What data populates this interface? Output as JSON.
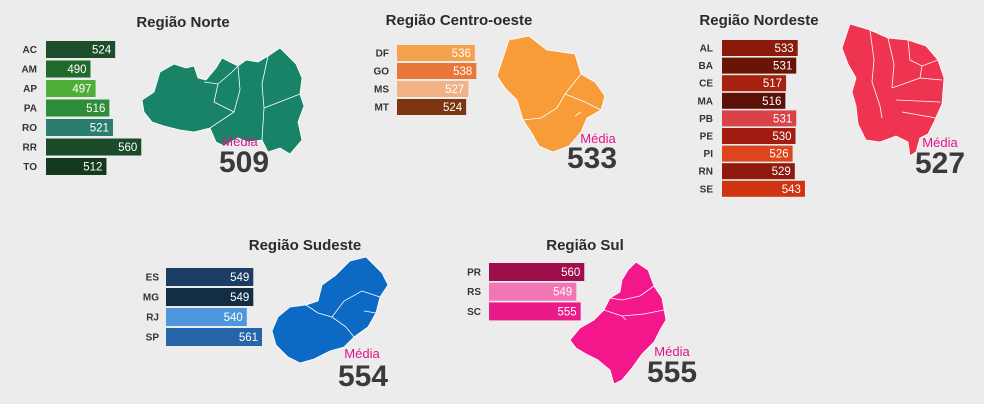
{
  "chart_data": [
    {
      "type": "bar",
      "title": "Região Norte",
      "categories": [
        "AC",
        "AM",
        "AP",
        "PA",
        "RO",
        "RR",
        "TO"
      ],
      "values": [
        524,
        490,
        497,
        516,
        521,
        560,
        512
      ],
      "colors": [
        "#1d4d2a",
        "#1f6b2d",
        "#4fae37",
        "#2e8d3b",
        "#2a7d6c",
        "#1a4a27",
        "#133a1f"
      ],
      "media_label": "Média",
      "media_value": "509",
      "map_color": "#188366"
    },
    {
      "type": "bar",
      "title": "Região Centro-oeste",
      "categories": [
        "DF",
        "GO",
        "MS",
        "MT"
      ],
      "values": [
        536,
        538,
        527,
        524
      ],
      "colors": [
        "#f6a14d",
        "#e9773a",
        "#f1b286",
        "#7c3411"
      ],
      "media_label": "Média",
      "media_value": "533",
      "map_color": "#f89c39"
    },
    {
      "type": "bar",
      "title": "Região Nordeste",
      "categories": [
        "AL",
        "BA",
        "CE",
        "MA",
        "PB",
        "PE",
        "PI",
        "RN",
        "SE"
      ],
      "values": [
        533,
        531,
        517,
        516,
        531,
        530,
        526,
        529,
        543
      ],
      "colors": [
        "#8c1a0b",
        "#6a1408",
        "#a8200f",
        "#5c1006",
        "#d94348",
        "#a31c12",
        "#e0441c",
        "#8f1a0d",
        "#cf3412"
      ],
      "media_label": "Média",
      "media_value": "527",
      "map_color": "#ef3452"
    },
    {
      "type": "bar",
      "title": "Região Sudeste",
      "categories": [
        "ES",
        "MG",
        "RJ",
        "SP"
      ],
      "values": [
        549,
        549,
        540,
        561
      ],
      "colors": [
        "#1b3c63",
        "#132d43",
        "#4e97dc",
        "#2565a8"
      ],
      "media_label": "Média",
      "media_value": "554",
      "map_color": "#0c6ac4"
    },
    {
      "type": "bar",
      "title": "Região Sul",
      "categories": [
        "PR",
        "RS",
        "SC"
      ],
      "values": [
        560,
        549,
        555
      ],
      "colors": [
        "#9e0e4c",
        "#f276b6",
        "#ea1a89"
      ],
      "media_label": "Média",
      "media_value": "555",
      "map_color": "#f4178b"
    }
  ],
  "style": {
    "media_label_color": "#e0148a"
  }
}
